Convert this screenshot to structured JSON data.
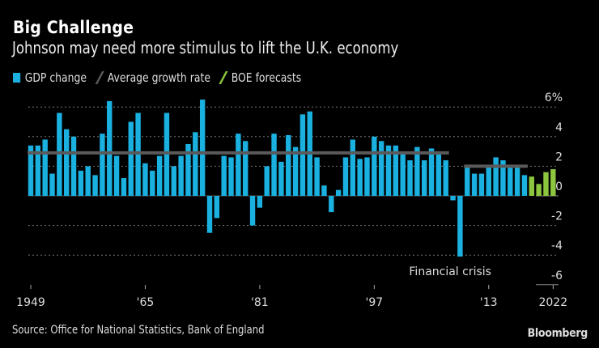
{
  "header": {
    "title": "Big Challenge",
    "subtitle": "Johnson may need more stimulus to lift the U.K. economy"
  },
  "legend": [
    {
      "label": "GDP change",
      "color": "#1ab1e0",
      "icon": "square-swatch"
    },
    {
      "label": "Average growth rate",
      "color": "#5a5a5a",
      "icon": "slash-swatch"
    },
    {
      "label": "BOE forecasts",
      "color": "#8cc63f",
      "icon": "slash-swatch"
    }
  ],
  "footer": {
    "source": "Source: Office for National Statistics, Bank of England",
    "brand": "Bloomberg"
  },
  "chart_data": {
    "type": "bar",
    "title": "Big Challenge",
    "subtitle": "Johnson may need more stimulus to lift the U.K. economy",
    "xlabel": "",
    "ylabel": "",
    "ylim": [
      -6,
      6
    ],
    "y_ticks": [
      6,
      4,
      2,
      0,
      -2,
      -4,
      -6
    ],
    "y_tick_labels": [
      "6%",
      "4",
      "2",
      "0",
      "-2",
      "-4",
      "-6"
    ],
    "y_axis_position": "right",
    "grid": true,
    "x_tick_labels": [
      {
        "year": 1949,
        "label": "1949"
      },
      {
        "year": 1965,
        "label": "'65"
      },
      {
        "year": 1981,
        "label": "'81"
      },
      {
        "year": 1997,
        "label": "'97"
      },
      {
        "year": 2013,
        "label": "'13"
      },
      {
        "year": 2022,
        "label": "2022"
      }
    ],
    "legend_position": "top-left",
    "series": [
      {
        "name": "GDP change",
        "color": "#1ab1e0",
        "x": [
          1949,
          1950,
          1951,
          1952,
          1953,
          1954,
          1955,
          1956,
          1957,
          1958,
          1959,
          1960,
          1961,
          1962,
          1963,
          1964,
          1965,
          1966,
          1967,
          1968,
          1969,
          1970,
          1971,
          1972,
          1973,
          1974,
          1975,
          1976,
          1977,
          1978,
          1979,
          1980,
          1981,
          1982,
          1983,
          1984,
          1985,
          1986,
          1987,
          1988,
          1989,
          1990,
          1991,
          1992,
          1993,
          1994,
          1995,
          1996,
          1997,
          1998,
          1999,
          2000,
          2001,
          2002,
          2003,
          2004,
          2005,
          2006,
          2007,
          2008,
          2009,
          2010,
          2011,
          2012,
          2013,
          2014,
          2015,
          2016,
          2017,
          2018
        ],
        "values": [
          3.4,
          3.4,
          3.8,
          1.5,
          5.6,
          4.5,
          4.0,
          1.7,
          2.0,
          1.4,
          4.2,
          6.4,
          2.7,
          1.2,
          5.0,
          5.6,
          2.2,
          1.7,
          2.7,
          5.6,
          2.0,
          2.7,
          3.5,
          4.3,
          6.5,
          -2.5,
          -1.5,
          2.7,
          2.6,
          4.2,
          3.7,
          -2.0,
          -0.8,
          2.0,
          4.2,
          2.3,
          4.1,
          3.3,
          5.5,
          5.7,
          2.6,
          0.7,
          -1.1,
          0.4,
          2.6,
          3.8,
          2.5,
          2.6,
          4.0,
          3.7,
          3.4,
          3.4,
          3.0,
          2.4,
          3.3,
          2.4,
          3.2,
          2.8,
          2.4,
          -0.3,
          -4.1,
          1.9,
          1.5,
          1.5,
          2.1,
          2.6,
          2.4,
          1.9,
          1.9,
          1.4
        ]
      },
      {
        "name": "BOE forecasts",
        "color": "#8cc63f",
        "x": [
          2019,
          2020,
          2021,
          2022
        ],
        "values": [
          1.3,
          0.8,
          1.6,
          1.8
        ]
      },
      {
        "name": "Average growth rate",
        "color": "#5a5a5a",
        "type": "line",
        "segments": [
          {
            "from": 1949,
            "to": 2007,
            "value": 2.9
          },
          {
            "from": 2010,
            "to": 2018,
            "value": 2.0
          }
        ]
      }
    ],
    "annotations": [
      {
        "text": "Financial crisis",
        "x": 2009
      }
    ]
  }
}
